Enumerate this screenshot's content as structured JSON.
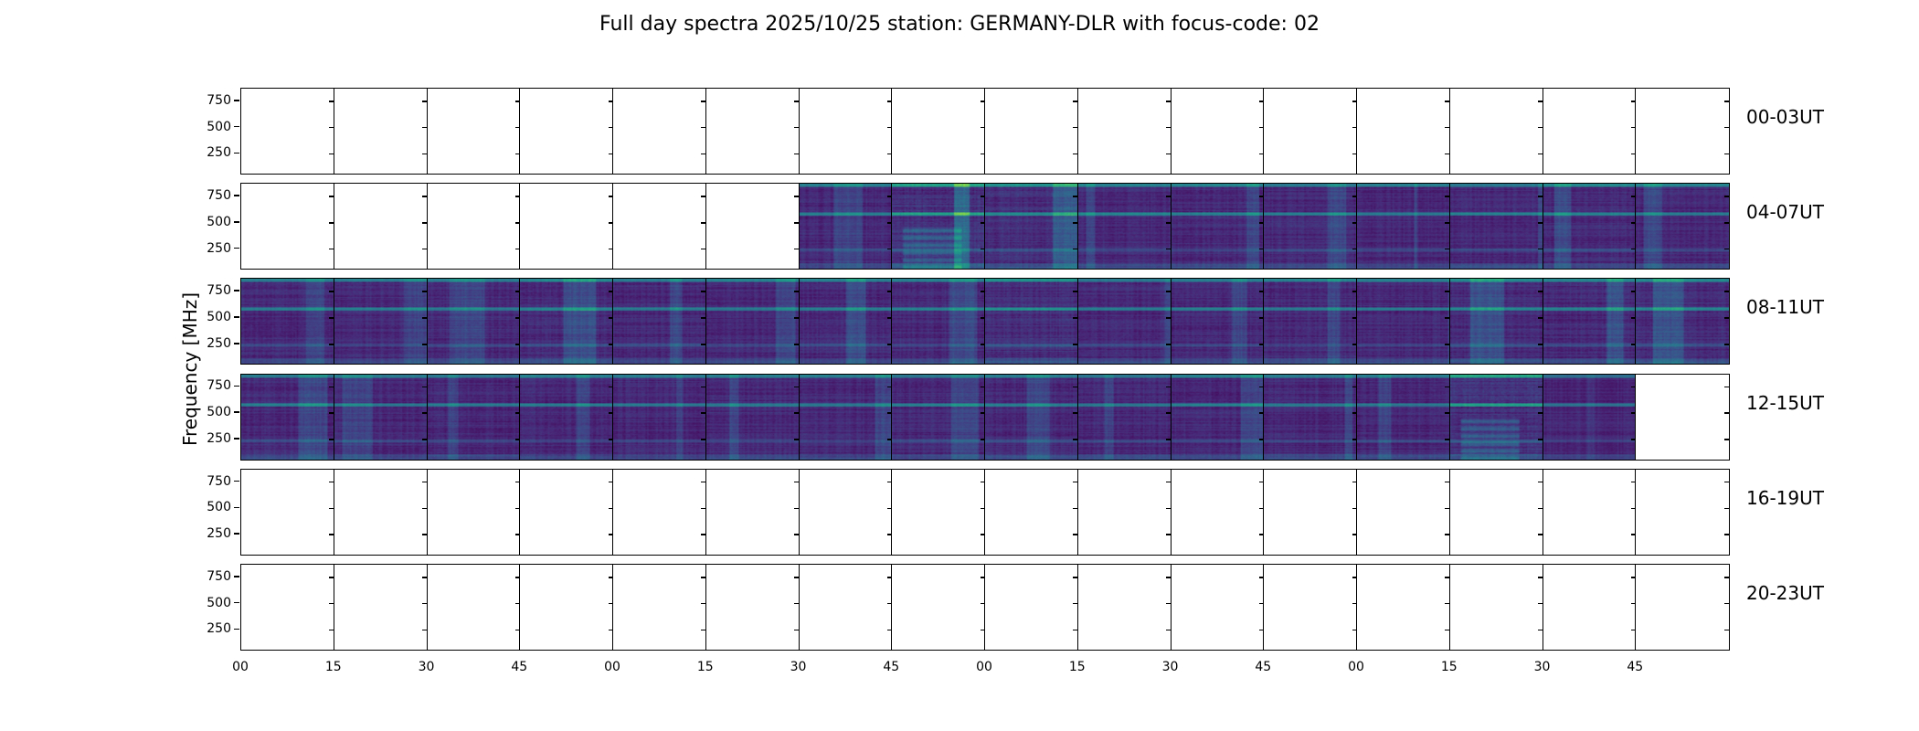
{
  "chart_data": {
    "type": "heatmap",
    "title": "Full day spectra 2025/10/25 station: GERMANY-DLR with focus-code: 02",
    "ylabel": "Frequency [MHz]",
    "xlabel": "",
    "yticks": [
      "750",
      "500",
      "250"
    ],
    "ytick_values": [
      750,
      500,
      250
    ],
    "ylim": [
      45,
      870
    ],
    "xtick_labels": [
      "00",
      "15",
      "30",
      "45",
      "00",
      "15",
      "30",
      "45",
      "00",
      "15",
      "30",
      "45",
      "00",
      "15",
      "30",
      "45"
    ],
    "colormap": "viridis",
    "panels_per_row": 16,
    "rows": [
      {
        "label": "00-03UT",
        "activity": [
          0,
          0,
          0,
          0,
          0,
          0,
          0,
          0,
          0,
          0,
          0,
          0,
          0,
          0,
          0,
          0
        ]
      },
      {
        "label": "04-07UT",
        "activity": [
          0,
          0,
          0,
          0,
          0,
          0,
          0.25,
          0.6,
          0.45,
          0.3,
          0.3,
          0.3,
          0.25,
          0.3,
          0.32,
          0.3
        ]
      },
      {
        "label": "08-11UT",
        "activity": [
          0.3,
          0.25,
          0.28,
          0.35,
          0.3,
          0.28,
          0.32,
          0.3,
          0.45,
          0.3,
          0.28,
          0.3,
          0.3,
          0.38,
          0.36,
          0.38
        ]
      },
      {
        "label": "12-15UT",
        "activity": [
          0.28,
          0.25,
          0.26,
          0.26,
          0.25,
          0.28,
          0.27,
          0.26,
          0.28,
          0.27,
          0.28,
          0.28,
          0.25,
          0.6,
          0.15,
          0
        ]
      },
      {
        "label": "16-19UT",
        "activity": [
          0,
          0,
          0,
          0,
          0,
          0,
          0,
          0,
          0,
          0,
          0,
          0,
          0,
          0,
          0,
          0
        ]
      },
      {
        "label": "20-23UT",
        "activity": [
          0,
          0,
          0,
          0,
          0,
          0,
          0,
          0,
          0,
          0,
          0,
          0,
          0,
          0,
          0,
          0
        ]
      }
    ]
  }
}
